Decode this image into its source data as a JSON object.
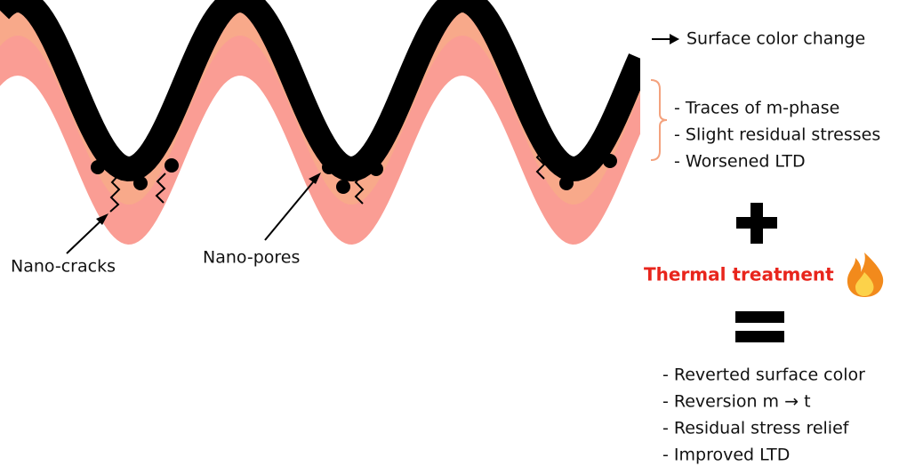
{
  "labels": {
    "nano_cracks": "Nano-cracks",
    "nano_pores": "Nano-pores"
  },
  "surface_note": "Surface color change",
  "before_effects": [
    "- Traces of m-phase",
    "- Slight residual stresses",
    "- Worsened LTD"
  ],
  "treatment": "Thermal treatment",
  "after_effects": [
    "- Reverted surface color",
    "- Reversion m → t",
    "- Residual stress relief",
    "- Improved LTD"
  ]
}
